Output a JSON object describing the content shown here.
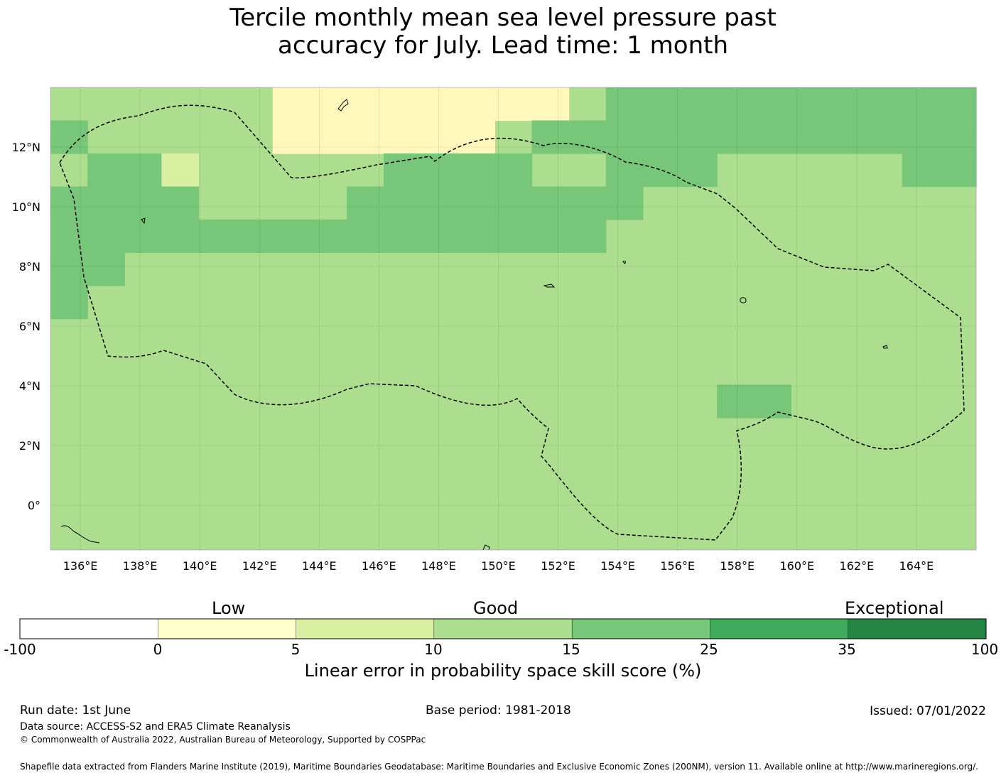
{
  "title": {
    "line1": "Tercile monthly mean sea level pressure past",
    "line2": "accuracy for July. Lead time: 1 month"
  },
  "map": {
    "lon_range": [
      135,
      166
    ],
    "lat_range": [
      -1.5,
      14
    ],
    "y_ticks": [
      "12°N",
      "10°N",
      "8°N",
      "6°N",
      "4°N",
      "2°N",
      "0°"
    ],
    "x_ticks": [
      "136°E",
      "138°E",
      "140°E",
      "142°E",
      "144°E",
      "146°E",
      "148°E",
      "150°E",
      "152°E",
      "154°E",
      "156°E",
      "158°E",
      "160°E",
      "162°E",
      "164°E"
    ],
    "palette": {
      "1": "#d9f0a3",
      "2": "#addd8e",
      "3": "#78c679",
      "4": "#fff7bc"
    },
    "grid_rows": [
      "2222224444444423333333333",
      "3222224444442333333333333",
      "2331222223333223332222233",
      "3333222233333333222222222",
      "3333333333333332222222222",
      "3322222222222222222222222",
      "3222222222222222222222222",
      "2222222222222222222222222",
      "2222222222222222222222222",
      "2222222222222222223322222",
      "2222222222222222222222222",
      "2222222222222222222222222",
      "2222222222222222222222222",
      "2222222222222222222222222"
    ]
  },
  "colorbar": {
    "words": [
      "Low",
      "Good",
      "Exceptional"
    ],
    "ticks": [
      "-100",
      "0",
      "5",
      "10",
      "15",
      "25",
      "35",
      "100"
    ],
    "colors": [
      "#ffffff",
      "#ffffcc",
      "#d9f0a3",
      "#addd8e",
      "#78c679",
      "#41ab5d",
      "#238443"
    ],
    "label": "Linear error in probability space skill score (%)"
  },
  "footer": {
    "run_date": "Run date: 1st June",
    "base_period": "Base period: 1981-2018",
    "issued": "Issued: 07/01/2022",
    "data_source": "Data source: ACCESS-S2 and ERA5 Climate Reanalysis",
    "copyright": "© Commonwealth of Australia 2022, Australian Bureau of Meteorology, Supported by COSPPac",
    "shapefile": "Shapefile data extracted from Flanders Marine Institute (2019), Maritime Boundaries Geodatabase: Maritime Boundaries and Exclusive Economic Zones (200NM), version 11. Available online at http://www.marineregions.org/."
  }
}
